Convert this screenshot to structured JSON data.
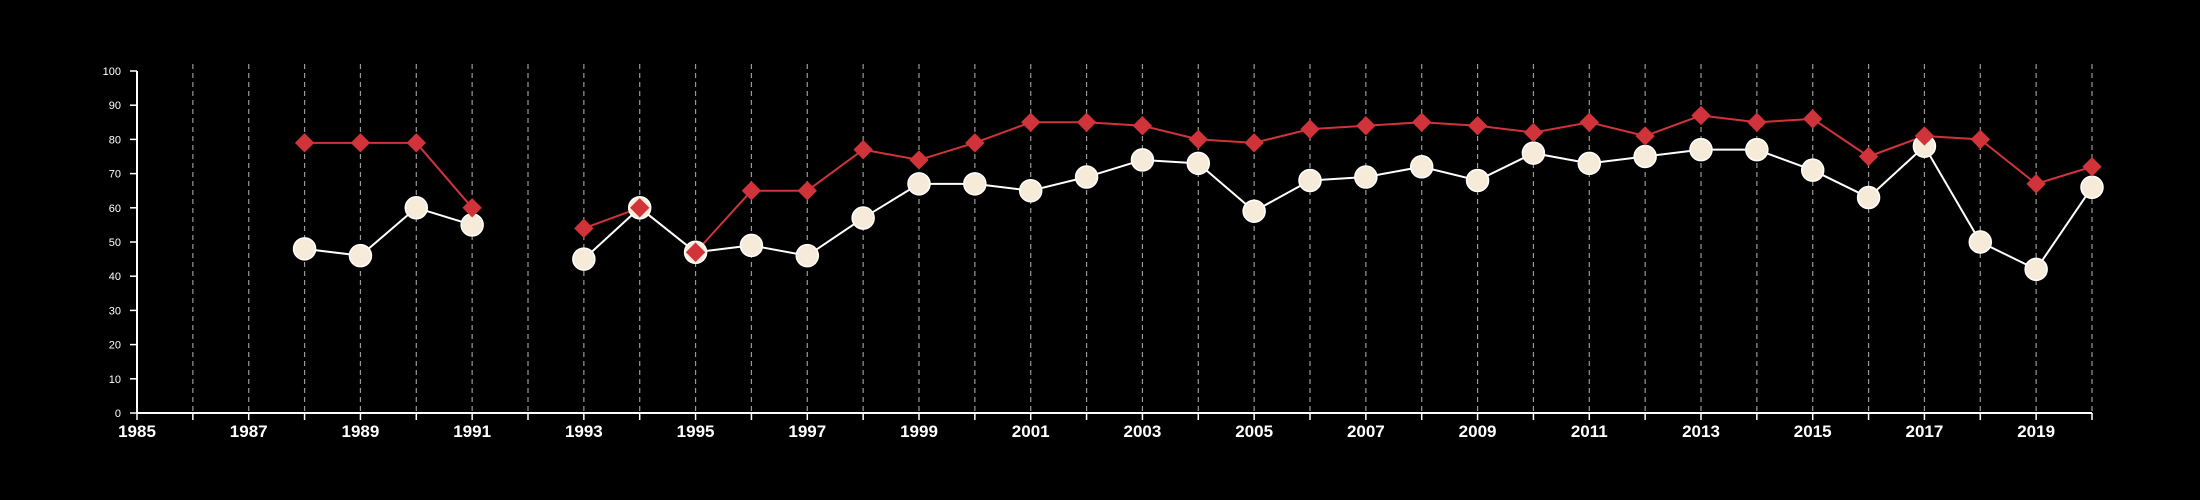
{
  "chart_data": {
    "type": "line",
    "title": "",
    "xlabel": "",
    "ylabel": "",
    "xlim": [
      1985,
      2020
    ],
    "ylim": [
      0,
      100
    ],
    "x_ticks": [
      1985,
      1987,
      1989,
      1991,
      1993,
      1995,
      1997,
      1999,
      2001,
      2003,
      2005,
      2007,
      2009,
      2011,
      2013,
      2015,
      2017,
      2019
    ],
    "y_ticks": [
      0,
      10,
      20,
      30,
      40,
      50,
      60,
      70,
      80,
      90,
      100
    ],
    "vertical_grid": "dashed, every year",
    "horizontal_grid": false,
    "legend": "none",
    "x": [
      1985,
      1986,
      1987,
      1988,
      1989,
      1990,
      1991,
      1992,
      1993,
      1994,
      1995,
      1996,
      1997,
      1998,
      1999,
      2000,
      2001,
      2002,
      2003,
      2004,
      2005,
      2006,
      2007,
      2008,
      2009,
      2010,
      2011,
      2012,
      2013,
      2014,
      2015,
      2016,
      2017,
      2018,
      2019,
      2020
    ],
    "series": [
      {
        "marker": "diamond",
        "color": "#d0343a",
        "values": [
          null,
          null,
          null,
          79,
          79,
          79,
          60,
          null,
          54,
          60,
          47,
          65,
          65,
          77,
          74,
          79,
          85,
          85,
          84,
          80,
          79,
          83,
          84,
          85,
          84,
          82,
          85,
          81,
          87,
          85,
          86,
          75,
          81,
          80,
          67,
          72
        ]
      },
      {
        "marker": "circle",
        "color": "#ffffff",
        "fill": "#f6ead8",
        "values": [
          null,
          null,
          null,
          48,
          46,
          60,
          55,
          null,
          45,
          60,
          47,
          49,
          46,
          57,
          67,
          67,
          65,
          69,
          74,
          73,
          59,
          68,
          69,
          72,
          68,
          76,
          73,
          75,
          77,
          77,
          71,
          63,
          78,
          50,
          42,
          66
        ]
      }
    ]
  }
}
